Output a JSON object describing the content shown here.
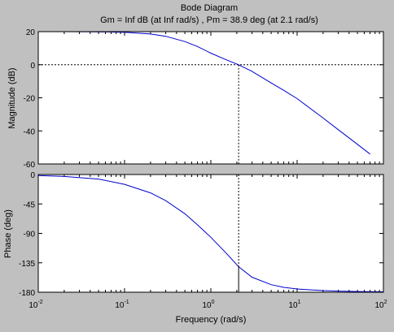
{
  "figure": {
    "background": "#c0c0c0",
    "axes_background": "#ffffff",
    "curve_color": "#0000cc",
    "margin_line_color": "#000000"
  },
  "chart_data": {
    "type": "line",
    "title": "Bode Diagram",
    "subtitle": "Gm = Inf dB (at Inf rad/s) ,  Pm = 38.9 deg (at 2.1 rad/s)",
    "xlabel": "Frequency  (rad/s)",
    "x_scale": "log",
    "xlim": [
      0.01,
      100
    ],
    "x_ticks": [
      0.01,
      0.1,
      1,
      10,
      100
    ],
    "x_tick_base": "10",
    "x_tick_exponents": [
      "-2",
      "-1",
      "0",
      "1",
      "2"
    ],
    "crossover_frequency": 2.1,
    "phase_at_crossover": -141.1,
    "magnitude": {
      "ylabel": "Magnitude (dB)",
      "ylim": [
        -60,
        20
      ],
      "y_ticks": [
        "20",
        "0",
        "-20",
        "-40",
        "-60"
      ],
      "y_tick_values": [
        20,
        0,
        -20,
        -40,
        -60
      ],
      "reference_line": 0,
      "series": [
        {
          "x": [
            0.01,
            0.02,
            0.05,
            0.1,
            0.2,
            0.3,
            0.5,
            0.7,
            1,
            1.5,
            2.1,
            3,
            5,
            7,
            10,
            20,
            30,
            50,
            70
          ],
          "values": [
            20,
            20,
            19.9,
            19.6,
            18.6,
            17.2,
            14,
            11,
            7,
            3,
            0,
            -4,
            -11,
            -15.5,
            -20.5,
            -32.2,
            -39.3,
            -48.1,
            -54
          ]
        }
      ]
    },
    "phase": {
      "ylabel": "Phase (deg)",
      "ylim": [
        -180,
        0
      ],
      "y_ticks": [
        "0",
        "-45",
        "-90",
        "-135",
        "-180"
      ],
      "y_tick_values": [
        0,
        -45,
        -90,
        -135,
        -180
      ],
      "reference_line": -180,
      "series": [
        {
          "x": [
            0.01,
            0.02,
            0.05,
            0.1,
            0.2,
            0.3,
            0.5,
            0.7,
            1,
            1.5,
            2.1,
            3,
            5,
            7,
            10,
            20,
            30,
            50,
            100
          ],
          "values": [
            -1.5,
            -3,
            -7,
            -15,
            -28,
            -40,
            -60,
            -77,
            -96,
            -120,
            -141,
            -157,
            -168.5,
            -172.5,
            -175,
            -177.5,
            -178.3,
            -178.9,
            -179.4
          ]
        }
      ]
    }
  }
}
